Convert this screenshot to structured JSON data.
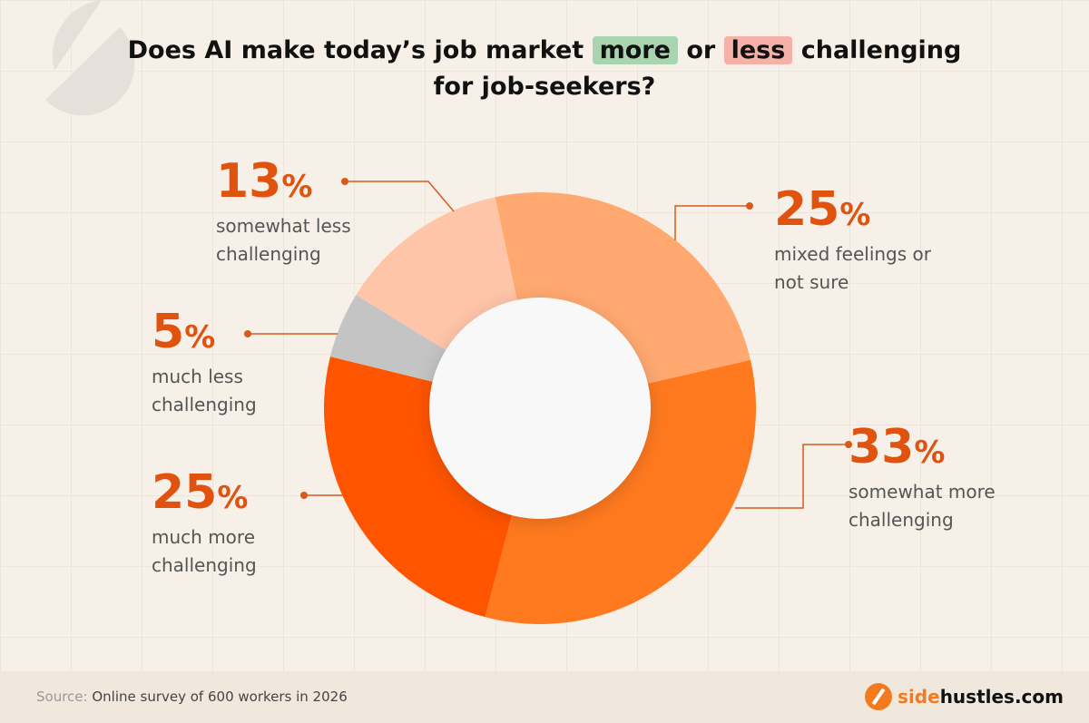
{
  "title": {
    "pre": "Does AI make today’s job market",
    "more": "more",
    "or": "or",
    "less": "less",
    "post": "challenging",
    "line2": "for job-seekers?"
  },
  "chart_data": {
    "type": "pie",
    "donut": true,
    "slices": [
      {
        "label": "mixed feelings or not sure",
        "value": 25,
        "pct": "25",
        "color": "#ffa970"
      },
      {
        "label": "somewhat more challenging",
        "value": 33,
        "pct": "33",
        "color": "#ff7a1f"
      },
      {
        "label": "much more challenging",
        "value": 25,
        "pct": "25",
        "color": "#ff5500"
      },
      {
        "label": "much less challenging",
        "value": 5,
        "pct": "5",
        "color": "#c4c4c4"
      },
      {
        "label": "somewhat less challenging",
        "value": 13,
        "pct": "13",
        "color": "#ffc5a8"
      }
    ]
  },
  "percent_sign": "%",
  "footer": {
    "source_label": "Source:",
    "source_text": "Online survey of 600 workers in 2026",
    "logo_accent": "side",
    "logo_rest": "hustles.com"
  }
}
